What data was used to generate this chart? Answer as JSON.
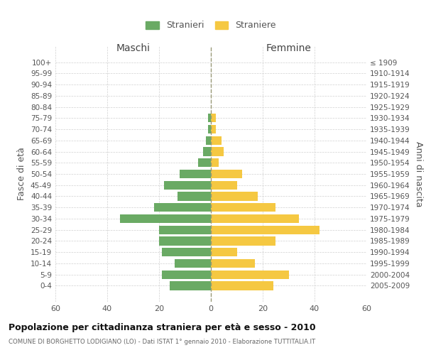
{
  "age_groups": [
    "100+",
    "95-99",
    "90-94",
    "85-89",
    "80-84",
    "75-79",
    "70-74",
    "65-69",
    "60-64",
    "55-59",
    "50-54",
    "45-49",
    "40-44",
    "35-39",
    "30-34",
    "25-29",
    "20-24",
    "15-19",
    "10-14",
    "5-9",
    "0-4"
  ],
  "birth_years": [
    "≤ 1909",
    "1910-1914",
    "1915-1919",
    "1920-1924",
    "1925-1929",
    "1930-1934",
    "1935-1939",
    "1940-1944",
    "1945-1949",
    "1950-1954",
    "1955-1959",
    "1960-1964",
    "1965-1969",
    "1970-1974",
    "1975-1979",
    "1980-1984",
    "1985-1989",
    "1990-1994",
    "1995-1999",
    "2000-2004",
    "2005-2009"
  ],
  "maschi": [
    0,
    0,
    0,
    0,
    0,
    1,
    1,
    2,
    3,
    5,
    12,
    18,
    13,
    22,
    35,
    20,
    20,
    19,
    14,
    19,
    16
  ],
  "femmine": [
    0,
    0,
    0,
    0,
    0,
    2,
    2,
    4,
    5,
    3,
    12,
    10,
    18,
    25,
    34,
    42,
    25,
    10,
    17,
    30,
    24
  ],
  "maschi_color": "#6aaa64",
  "femmine_color": "#f5c842",
  "bg_color": "#ffffff",
  "grid_color": "#cccccc",
  "title": "Popolazione per cittadinanza straniera per età e sesso - 2010",
  "subtitle": "COMUNE DI BORGHETTO LODIGIANO (LO) - Dati ISTAT 1° gennaio 2010 - Elaborazione TUTTITALIA.IT",
  "ylabel_left": "Fasce di età",
  "ylabel_right": "Anni di nascita",
  "xlabel_maschi": "Maschi",
  "xlabel_femmine": "Femmine",
  "legend_maschi": "Stranieri",
  "legend_femmine": "Straniere",
  "xlim": 60,
  "dpi": 100,
  "figsize": [
    6.0,
    5.0
  ]
}
